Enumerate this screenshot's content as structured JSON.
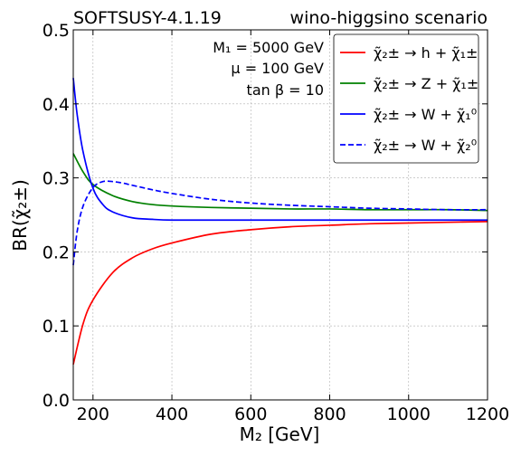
{
  "chart_data": {
    "type": "line",
    "title_left": "SOFTSUSY-4.1.19",
    "title_right": "wino-higgsino scenario",
    "xlabel": "M₂ [GeV]",
    "ylabel": "BR(χ̃₂±)",
    "xlim": [
      150,
      1200
    ],
    "ylim": [
      0,
      0.5
    ],
    "xticks": [
      200,
      400,
      600,
      800,
      1000,
      1200
    ],
    "yticks": [
      0.0,
      0.1,
      0.2,
      0.3,
      0.4,
      0.5
    ],
    "xtick_labels": [
      "200",
      "400",
      "600",
      "800",
      "1000",
      "1200"
    ],
    "ytick_labels": [
      "0.0",
      "0.1",
      "0.2",
      "0.3",
      "0.4",
      "0.5"
    ],
    "grid": true,
    "legend_position": "top-right",
    "annotations": [
      "M₁ = 5000 GeV",
      "μ = 100 GeV",
      "tan β = 10"
    ],
    "series": [
      {
        "name": "χ̃₂± → h + χ̃₁±",
        "color": "#ff0000",
        "dash": "solid",
        "x": [
          150,
          175,
          200,
          250,
          300,
          350,
          400,
          500,
          600,
          700,
          800,
          900,
          1000,
          1100,
          1200
        ],
        "y": [
          0.048,
          0.103,
          0.135,
          0.172,
          0.192,
          0.204,
          0.212,
          0.224,
          0.23,
          0.234,
          0.236,
          0.238,
          0.239,
          0.24,
          0.241
        ]
      },
      {
        "name": "χ̃₂± → Z + χ̃₁±",
        "color": "#008000",
        "dash": "solid",
        "x": [
          150,
          175,
          200,
          250,
          300,
          350,
          400,
          500,
          600,
          700,
          800,
          900,
          1000,
          1100,
          1200
        ],
        "y": [
          0.333,
          0.308,
          0.291,
          0.276,
          0.268,
          0.264,
          0.262,
          0.26,
          0.259,
          0.258,
          0.258,
          0.257,
          0.257,
          0.257,
          0.256
        ]
      },
      {
        "name": "χ̃₂± → W + χ̃₁⁰",
        "color": "#0000ff",
        "dash": "solid",
        "x": [
          150,
          160,
          175,
          200,
          225,
          250,
          300,
          350,
          400,
          500,
          600,
          700,
          800,
          900,
          1000,
          1100,
          1200
        ],
        "y": [
          0.435,
          0.385,
          0.335,
          0.286,
          0.264,
          0.254,
          0.246,
          0.244,
          0.243,
          0.243,
          0.243,
          0.243,
          0.243,
          0.243,
          0.243,
          0.243,
          0.243
        ]
      },
      {
        "name": "χ̃₂± → W + χ̃₂⁰",
        "color": "#0000ff",
        "dash": "dashed",
        "x": [
          150,
          160,
          175,
          200,
          225,
          250,
          275,
          300,
          350,
          400,
          500,
          600,
          700,
          800,
          900,
          1000,
          1100,
          1200
        ],
        "y": [
          0.182,
          0.228,
          0.262,
          0.287,
          0.295,
          0.295,
          0.293,
          0.29,
          0.284,
          0.279,
          0.271,
          0.266,
          0.263,
          0.261,
          0.259,
          0.258,
          0.257,
          0.257
        ]
      }
    ]
  }
}
